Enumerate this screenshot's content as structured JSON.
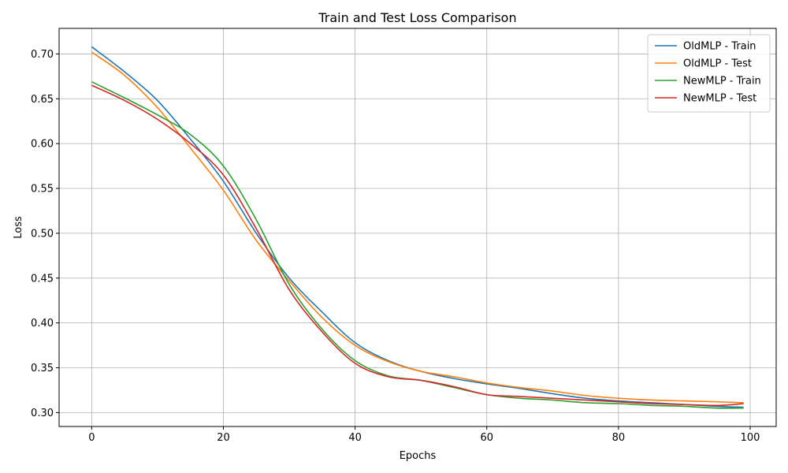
{
  "chart_data": {
    "type": "line",
    "title": "Train and Test Loss Comparison",
    "xlabel": "Epochs",
    "ylabel": "Loss",
    "xlim": [
      -4.95,
      103.95
    ],
    "ylim": [
      0.2845,
      0.7285
    ],
    "xticks": [
      0,
      20,
      40,
      60,
      80,
      100
    ],
    "yticks": [
      0.3,
      0.35,
      0.4,
      0.45,
      0.5,
      0.55,
      0.6,
      0.65,
      0.7
    ],
    "xtick_labels": [
      "0",
      "20",
      "40",
      "60",
      "80",
      "100"
    ],
    "ytick_labels": [
      "0.30",
      "0.35",
      "0.40",
      "0.45",
      "0.50",
      "0.55",
      "0.60",
      "0.65",
      "0.70"
    ],
    "grid": true,
    "legend_position": "top-right",
    "series": [
      {
        "name": "OldMLP - Train",
        "color": "#1f77b4",
        "x": [
          0,
          5,
          10,
          15,
          20,
          25,
          30,
          35,
          40,
          45,
          50,
          55,
          60,
          65,
          70,
          75,
          80,
          85,
          90,
          95,
          99
        ],
        "y": [
          0.708,
          0.68,
          0.648,
          0.605,
          0.558,
          0.5,
          0.45,
          0.412,
          0.378,
          0.358,
          0.346,
          0.338,
          0.332,
          0.327,
          0.321,
          0.316,
          0.313,
          0.311,
          0.309,
          0.307,
          0.306
        ]
      },
      {
        "name": "OldMLP - Test",
        "color": "#ff7f0e",
        "x": [
          0,
          5,
          10,
          15,
          20,
          25,
          30,
          35,
          40,
          45,
          50,
          55,
          60,
          65,
          70,
          75,
          80,
          85,
          90,
          95,
          99
        ],
        "y": [
          0.702,
          0.676,
          0.64,
          0.595,
          0.548,
          0.492,
          0.447,
          0.406,
          0.375,
          0.357,
          0.346,
          0.34,
          0.333,
          0.328,
          0.324,
          0.319,
          0.316,
          0.314,
          0.313,
          0.312,
          0.311
        ]
      },
      {
        "name": "NewMLP - Train",
        "color": "#2ca02c",
        "x": [
          0,
          5,
          10,
          15,
          20,
          25,
          30,
          35,
          40,
          45,
          50,
          55,
          60,
          65,
          70,
          75,
          80,
          85,
          90,
          95,
          99
        ],
        "y": [
          0.669,
          0.651,
          0.632,
          0.61,
          0.575,
          0.515,
          0.443,
          0.393,
          0.358,
          0.341,
          0.336,
          0.328,
          0.32,
          0.316,
          0.314,
          0.311,
          0.31,
          0.308,
          0.307,
          0.305,
          0.305
        ]
      },
      {
        "name": "NewMLP - Test",
        "color": "#d62728",
        "x": [
          0,
          5,
          10,
          15,
          20,
          25,
          30,
          35,
          40,
          45,
          50,
          55,
          60,
          65,
          70,
          75,
          80,
          85,
          90,
          95,
          99
        ],
        "y": [
          0.665,
          0.648,
          0.627,
          0.6,
          0.565,
          0.505,
          0.437,
          0.39,
          0.355,
          0.34,
          0.336,
          0.329,
          0.32,
          0.318,
          0.316,
          0.314,
          0.312,
          0.31,
          0.309,
          0.308,
          0.31
        ]
      }
    ]
  }
}
